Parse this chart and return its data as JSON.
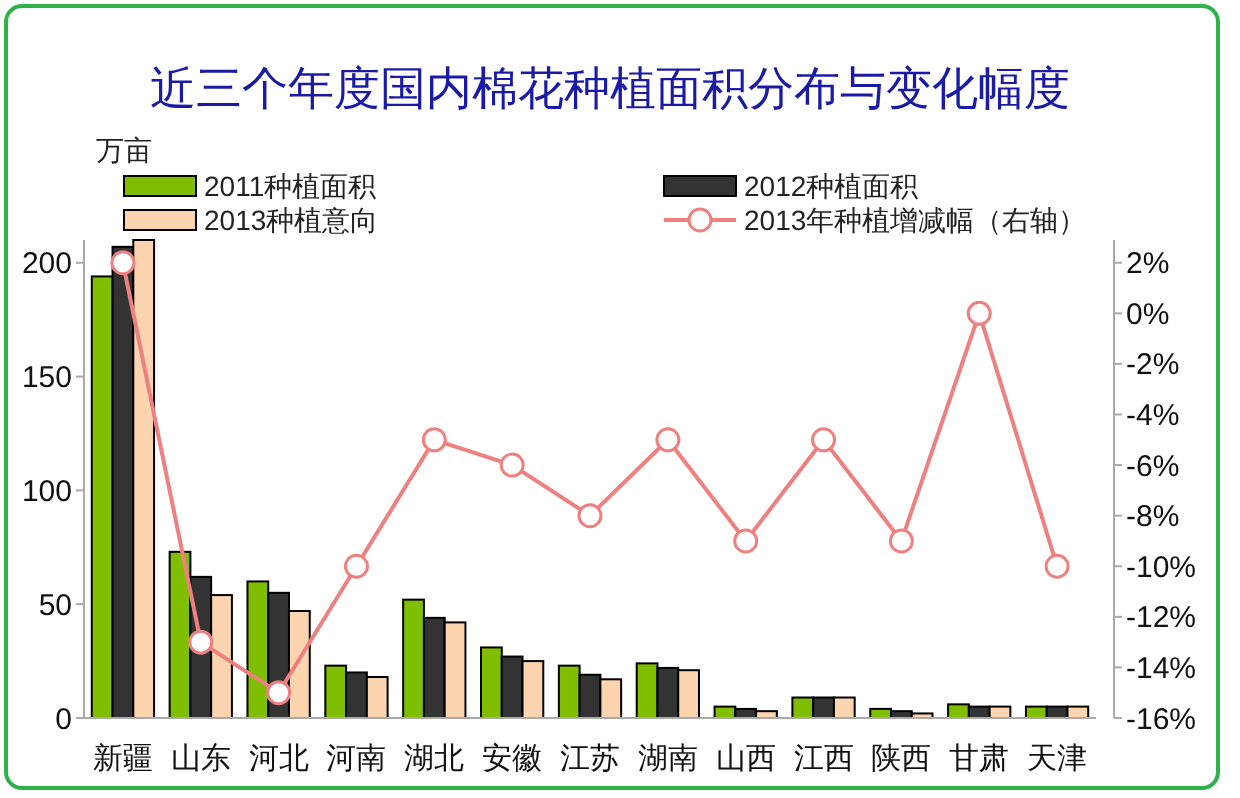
{
  "chart_data": {
    "type": "bar",
    "title": "近三个年度国内棉花种植面积分布与变化幅度",
    "ylabel": "万亩",
    "categories": [
      "新疆",
      "山东",
      "河北",
      "河南",
      "湖北",
      "安徽",
      "江苏",
      "湖南",
      "山西",
      "江西",
      "陕西",
      "甘肃",
      "天津"
    ],
    "series": [
      {
        "name": "2011种植面积",
        "color": "#7fbf00",
        "values": [
          194,
          73,
          60,
          23,
          52,
          31,
          23,
          24,
          5,
          9,
          4,
          6,
          5
        ]
      },
      {
        "name": "2012种植面积",
        "color": "#333333",
        "values": [
          207,
          62,
          55,
          20,
          44,
          27,
          19,
          22,
          4,
          9,
          3,
          5,
          5
        ]
      },
      {
        "name": "2013种植意向",
        "color": "#fcd5b0",
        "values": [
          210,
          54,
          47,
          18,
          42,
          25,
          17,
          21,
          3,
          9,
          2,
          5,
          5
        ]
      },
      {
        "name": "2013年种植增减幅（右轴）",
        "type": "line",
        "axis": "y2",
        "color": "#ee8080",
        "marker": "circle",
        "values": [
          2,
          -13,
          -15,
          -10,
          -5,
          -6,
          -8,
          -5,
          -9,
          -5,
          -9,
          0,
          -10
        ]
      }
    ],
    "ylim": [
      0,
      210
    ],
    "yticks": [
      0,
      50,
      100,
      150,
      200
    ],
    "y2lim": [
      -16,
      2.9
    ],
    "y2ticks": [
      {
        "value": 2,
        "label": "2%"
      },
      {
        "value": 0,
        "label": "0%"
      },
      {
        "value": -2,
        "label": "-2%"
      },
      {
        "value": -4,
        "label": "-4%"
      },
      {
        "value": -6,
        "label": "-6%"
      },
      {
        "value": -8,
        "label": "-8%"
      },
      {
        "value": -10,
        "label": "-10%"
      },
      {
        "value": -12,
        "label": "-12%"
      },
      {
        "value": -14,
        "label": "-14%"
      },
      {
        "value": -16,
        "label": "-16%"
      }
    ],
    "grid": false,
    "legend": "top"
  }
}
